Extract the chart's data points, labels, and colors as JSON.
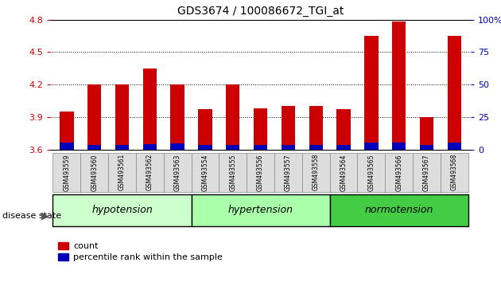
{
  "title": "GDS3674 / 100086672_TGI_at",
  "samples": [
    "GSM493559",
    "GSM493560",
    "GSM493561",
    "GSM493562",
    "GSM493563",
    "GSM493554",
    "GSM493555",
    "GSM493556",
    "GSM493557",
    "GSM493558",
    "GSM493564",
    "GSM493565",
    "GSM493566",
    "GSM493567",
    "GSM493568"
  ],
  "count_values": [
    3.95,
    4.2,
    4.2,
    4.35,
    4.2,
    3.97,
    4.2,
    3.98,
    4.0,
    4.0,
    3.97,
    4.65,
    4.78,
    3.9,
    4.65
  ],
  "percentile_values": [
    0.065,
    0.04,
    0.045,
    0.05,
    0.055,
    0.04,
    0.04,
    0.045,
    0.04,
    0.04,
    0.04,
    0.06,
    0.06,
    0.04,
    0.06
  ],
  "ymin": 3.6,
  "ymax": 4.8,
  "y2min": 0,
  "y2max": 100,
  "yticks": [
    3.6,
    3.9,
    4.2,
    4.5,
    4.8
  ],
  "y2ticks": [
    0,
    25,
    50,
    75,
    100
  ],
  "y2tick_labels": [
    "0",
    "25",
    "50",
    "75",
    "100%"
  ],
  "groups": [
    {
      "label": "hypotension",
      "start": 0,
      "end": 5,
      "color": "#ccffcc"
    },
    {
      "label": "hypertension",
      "start": 5,
      "end": 10,
      "color": "#aaffaa"
    },
    {
      "label": "normotension",
      "start": 10,
      "end": 15,
      "color": "#44cc44"
    }
  ],
  "bar_width": 0.5,
  "count_color": "#cc0000",
  "percentile_color": "#0000bb",
  "background_color": "#ffffff",
  "label_count": "count",
  "label_percentile": "percentile rank within the sample",
  "disease_state_label": "disease state"
}
